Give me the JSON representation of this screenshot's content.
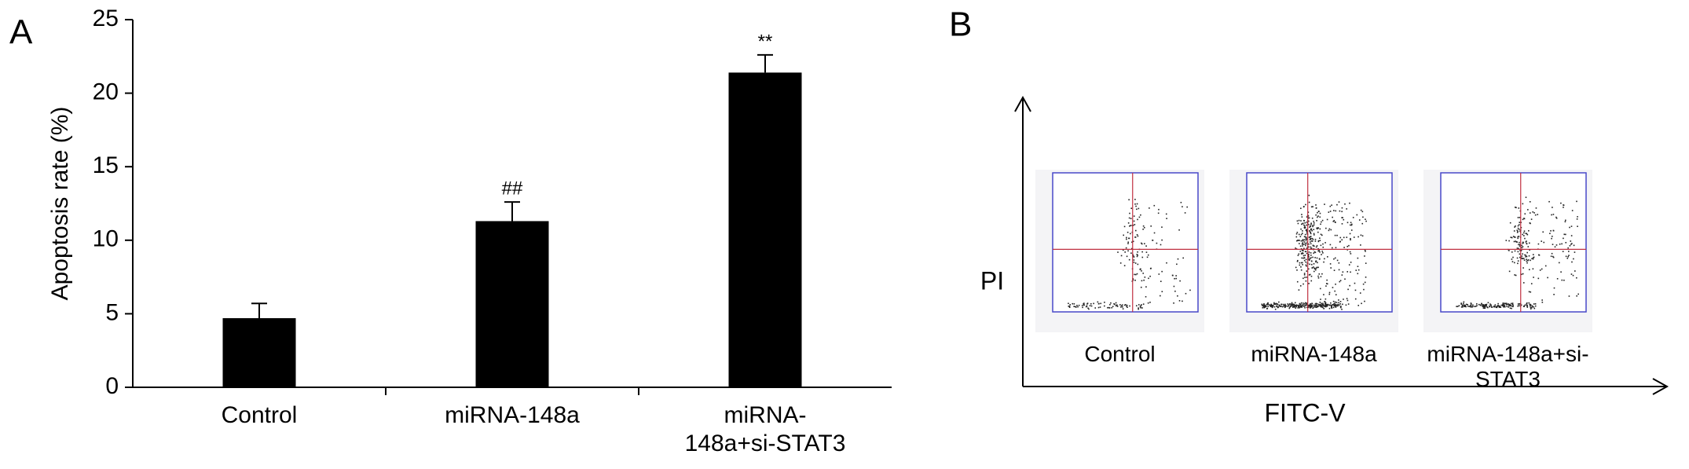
{
  "chart_data": {
    "type": "bar",
    "panel_label": "A",
    "y_label": "Apoptosis rate (%)",
    "categories": [
      "Control",
      "miRNA-148a",
      "miRNA-148a+si-STAT3"
    ],
    "values": [
      4.7,
      11.3,
      21.4
    ],
    "errors": [
      1.0,
      1.3,
      1.2
    ],
    "annotations": [
      null,
      "##",
      "**"
    ],
    "color": "#000000",
    "ylim": [
      0,
      25
    ],
    "yticks": [
      0,
      5,
      10,
      15,
      20,
      25
    ]
  },
  "panel_b": {
    "label": "B",
    "y_label": "PI",
    "x_label": "FITC-V",
    "plots": [
      "Control",
      "miRNA-148a",
      "miRNA-148a+si-STAT3"
    ]
  }
}
